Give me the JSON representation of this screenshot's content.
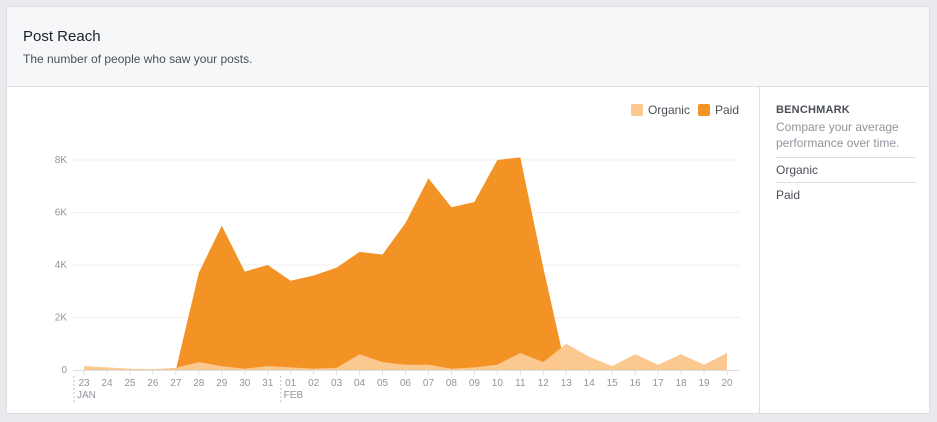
{
  "header": {
    "title": "Post Reach",
    "subtitle": "The number of people who saw your posts."
  },
  "sidebar": {
    "title": "BENCHMARK",
    "description": "Compare your average performance over time.",
    "items": [
      {
        "label": "Organic"
      },
      {
        "label": "Paid"
      }
    ]
  },
  "colors": {
    "organic": "#fbc88f",
    "paid": "#f39325",
    "grid": "#eeeff1",
    "axis_text": "#90949c"
  },
  "chart_data": {
    "type": "area",
    "title": "",
    "xlabel": "",
    "ylabel": "",
    "stacked": false,
    "ylim": [
      0,
      8000
    ],
    "yticks": [
      0,
      2000,
      4000,
      6000,
      8000
    ],
    "ytick_labels": [
      "0",
      "2K",
      "4K",
      "6K",
      "8K"
    ],
    "grid": true,
    "legend_position": "top-right",
    "x": [
      "23",
      "24",
      "25",
      "26",
      "27",
      "28",
      "29",
      "30",
      "31",
      "01",
      "02",
      "03",
      "04",
      "05",
      "06",
      "07",
      "08",
      "09",
      "10",
      "11",
      "12",
      "13",
      "14",
      "15",
      "16",
      "17",
      "18",
      "19",
      "20"
    ],
    "month_labels": [
      {
        "index": 0,
        "label": "JAN"
      },
      {
        "index": 9,
        "label": "FEB"
      }
    ],
    "series": [
      {
        "name": "Paid",
        "color": "#f39325",
        "values": [
          0,
          0,
          0,
          0,
          0,
          3700,
          5500,
          3750,
          4000,
          3400,
          3600,
          3900,
          4500,
          4400,
          5600,
          7300,
          6200,
          6400,
          8000,
          8100,
          3900,
          0,
          0,
          0,
          0,
          0,
          0,
          0,
          0
        ]
      },
      {
        "name": "Organic",
        "color": "#fbc88f",
        "values": [
          150,
          100,
          50,
          30,
          80,
          300,
          150,
          50,
          150,
          100,
          50,
          80,
          600,
          300,
          200,
          200,
          50,
          100,
          200,
          650,
          300,
          1000,
          500,
          150,
          600,
          200,
          600,
          200,
          650
        ]
      }
    ]
  }
}
